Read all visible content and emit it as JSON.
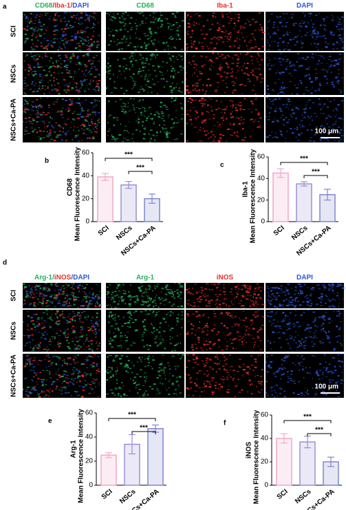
{
  "image_panels": [
    {
      "label": "a",
      "headers": [
        [
          {
            "text": "CD68",
            "color": "#22b35a"
          },
          {
            "text": "/Iba-1/",
            "color": "#e8302a"
          },
          {
            "text": "DAPI",
            "color": "#2b55d8"
          }
        ],
        [
          {
            "text": "CD68",
            "color": "#22b35a"
          }
        ],
        [
          {
            "text": "Iba-1",
            "color": "#e8302a"
          }
        ],
        [
          {
            "text": "DAPI",
            "color": "#2b55d8"
          }
        ]
      ],
      "rows": [
        "SCI",
        "NSCs",
        "NSCs+Ca-PA"
      ],
      "scale_bar": "100 μm"
    },
    {
      "label": "d",
      "headers": [
        [
          {
            "text": "Arg-1/",
            "color": "#22b35a"
          },
          {
            "text": "iNOS",
            "color": "#e8302a"
          },
          {
            "text": "/DAPI",
            "color": "#2b55d8"
          }
        ],
        [
          {
            "text": "Arg-1",
            "color": "#22b35a"
          }
        ],
        [
          {
            "text": "iNOS",
            "color": "#e8302a"
          }
        ],
        [
          {
            "text": "DAPI",
            "color": "#2b55d8"
          }
        ]
      ],
      "rows": [
        "SCI",
        "NSCs",
        "NSCs+Ca-PA"
      ],
      "scale_bar": "100 μm"
    }
  ],
  "chart_data": [
    {
      "type": "bar",
      "label": "b",
      "ylabel": "CD68",
      "ylabel_sub": "Mean Fluorescence Intensity",
      "categories": [
        "SCI",
        "NSCs",
        "NSCs+Ca-PA"
      ],
      "values": [
        39,
        32,
        20
      ],
      "errors": [
        3,
        3,
        4
      ],
      "colors": [
        "#f2a7c9",
        "#9a8fd4",
        "#7f86cc"
      ],
      "ylim": [
        0,
        60
      ],
      "yticks": [
        0,
        20,
        40,
        60
      ],
      "significance": [
        "***",
        "***"
      ]
    },
    {
      "type": "bar",
      "label": "c",
      "ylabel": "Iba-1",
      "ylabel_sub": "Mean Fluorescence Intensity",
      "categories": [
        "SCI",
        "NSCs",
        "NSCs+Ca-PA"
      ],
      "values": [
        45,
        35,
        25
      ],
      "errors": [
        4,
        2,
        5
      ],
      "colors": [
        "#f2a7c9",
        "#9a8fd4",
        "#7f86cc"
      ],
      "ylim": [
        0,
        60
      ],
      "yticks": [
        0,
        20,
        40,
        60
      ],
      "significance": [
        "***",
        "***"
      ]
    },
    {
      "type": "bar",
      "label": "e",
      "ylabel": "Arg-1",
      "ylabel_sub": "Mean Fluorescence Intensity",
      "categories": [
        "SCI",
        "NSCs",
        "NSCs+Ca-PA"
      ],
      "values": [
        25,
        34,
        47
      ],
      "errors": [
        2,
        8,
        3
      ],
      "colors": [
        "#f2a7c9",
        "#9a8fd4",
        "#7f86cc"
      ],
      "ylim": [
        0,
        60
      ],
      "yticks": [
        0,
        20,
        40,
        60
      ],
      "significance": [
        "***",
        "***"
      ]
    },
    {
      "type": "bar",
      "label": "f",
      "ylabel": "iNOS",
      "ylabel_sub": "Mean Fluorescence Intensity",
      "categories": [
        "SCI",
        "NSCs",
        "NSCs+Ca-PA"
      ],
      "values": [
        40,
        37,
        20
      ],
      "errors": [
        4,
        5,
        4
      ],
      "colors": [
        "#f2a7c9",
        "#9a8fd4",
        "#7f86cc"
      ],
      "ylim": [
        0,
        60
      ],
      "yticks": [
        0,
        20,
        40,
        60
      ],
      "significance": [
        "***",
        "***"
      ]
    }
  ]
}
